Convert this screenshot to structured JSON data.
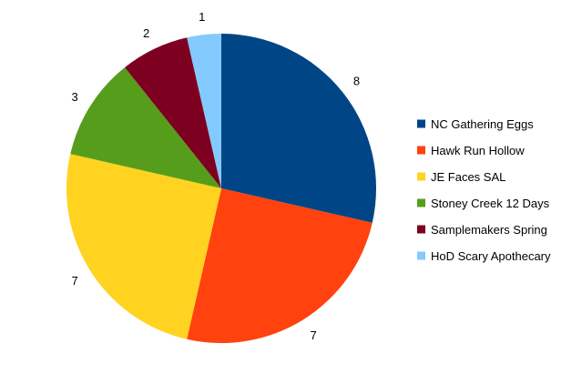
{
  "chart_data": {
    "type": "pie",
    "title": "",
    "slices": [
      {
        "label": "NC Gathering Eggs",
        "value": 8,
        "color": "#004586"
      },
      {
        "label": "Hawk Run Hollow",
        "value": 7,
        "color": "#ff420e"
      },
      {
        "label": "JE Faces SAL",
        "value": 7,
        "color": "#ffd320"
      },
      {
        "label": "Stoney Creek 12 Days",
        "value": 3,
        "color": "#579d1c"
      },
      {
        "label": "Samplemakers Spring",
        "value": 2,
        "color": "#7e0021"
      },
      {
        "label": "HoD Scary Apothecary",
        "value": 1,
        "color": "#83caff"
      }
    ],
    "data_labels": "outside",
    "legend_position": "right",
    "start_angle": "top",
    "direction": "clockwise"
  }
}
